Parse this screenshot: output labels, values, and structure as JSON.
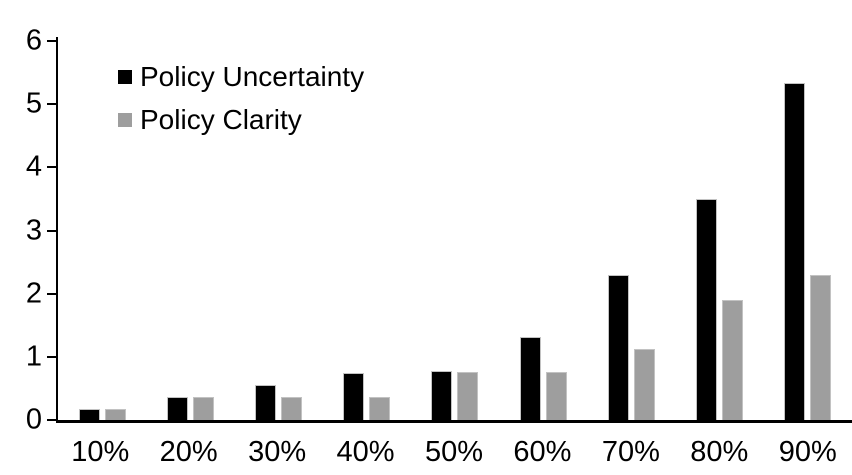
{
  "chart_data": {
    "type": "bar",
    "title": "",
    "xlabel": "",
    "ylabel": "",
    "categories": [
      "10%",
      "20%",
      "30%",
      "40%",
      "50%",
      "60%",
      "70%",
      "80%",
      "90%"
    ],
    "series": [
      {
        "name": "Policy Uncertainty",
        "color": "#000000",
        "values": [
          0.18,
          0.37,
          0.55,
          0.75,
          0.77,
          1.32,
          2.3,
          3.5,
          5.33
        ]
      },
      {
        "name": "Policy Clarity",
        "color": "#9e9e9e",
        "values": [
          0.18,
          0.36,
          0.36,
          0.37,
          0.76,
          0.76,
          1.13,
          1.9,
          2.3
        ]
      }
    ],
    "ylim": [
      0,
      6
    ],
    "yticks": [
      0,
      1,
      2,
      3,
      4,
      5,
      6
    ],
    "grid": false,
    "legend_position": "top-left-inside",
    "axis_color": "#000000",
    "background_color": "#ffffff"
  }
}
